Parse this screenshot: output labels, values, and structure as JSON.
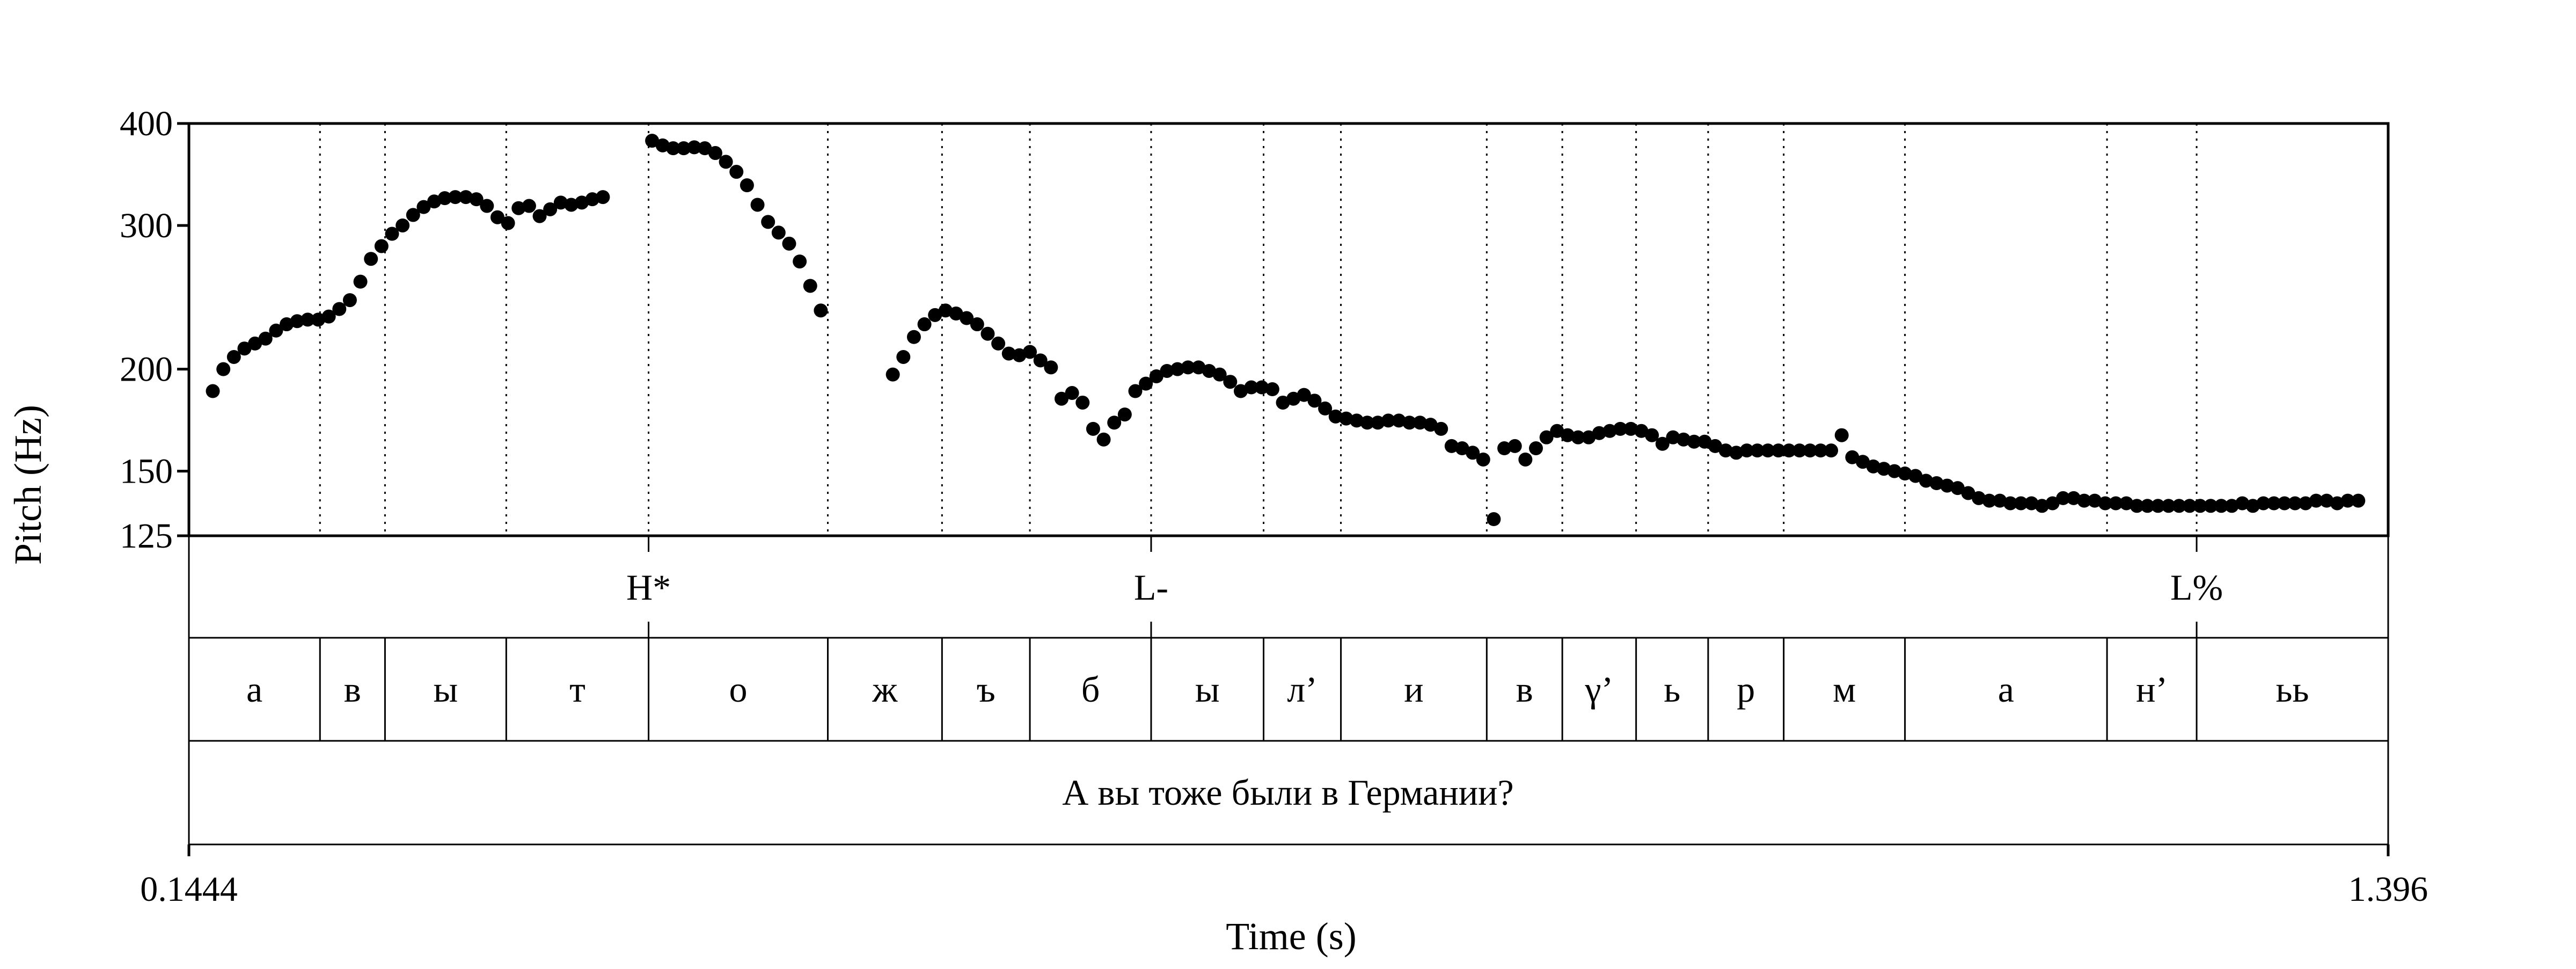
{
  "chart_data": {
    "type": "scatter",
    "title": "",
    "xlabel": "Time (s)",
    "ylabel": "Pitch (Hz)",
    "xlim": [
      0.1444,
      1.396
    ],
    "ylim": [
      125,
      400
    ],
    "y_scale": "log",
    "xtick_labels": [
      "0.1444",
      "1.396"
    ],
    "yticks": [
      {
        "value": 125,
        "label": "125"
      },
      {
        "value": 150,
        "label": "150"
      },
      {
        "value": 200,
        "label": "200"
      },
      {
        "value": 300,
        "label": "300"
      },
      {
        "value": 400,
        "label": "400"
      }
    ],
    "grid": false,
    "segment_boundaries": [
      0.219,
      0.256,
      0.325,
      0.406,
      0.508,
      0.573,
      0.623,
      0.692,
      0.756,
      0.8,
      0.883,
      0.926,
      0.968,
      1.009,
      1.052,
      1.121,
      1.236,
      1.287
    ],
    "tones": [
      {
        "time": 0.406,
        "label": "H*"
      },
      {
        "time": 0.692,
        "label": "L-"
      },
      {
        "time": 1.287,
        "label": "L%"
      }
    ],
    "segments": [
      {
        "start": 0.1444,
        "end": 0.219,
        "label": "а"
      },
      {
        "start": 0.219,
        "end": 0.256,
        "label": "в"
      },
      {
        "start": 0.256,
        "end": 0.325,
        "label": "ы"
      },
      {
        "start": 0.325,
        "end": 0.406,
        "label": "т"
      },
      {
        "start": 0.406,
        "end": 0.508,
        "label": "о"
      },
      {
        "start": 0.508,
        "end": 0.573,
        "label": "ж"
      },
      {
        "start": 0.573,
        "end": 0.623,
        "label": "ъ"
      },
      {
        "start": 0.623,
        "end": 0.692,
        "label": "б"
      },
      {
        "start": 0.692,
        "end": 0.756,
        "label": "ы"
      },
      {
        "start": 0.756,
        "end": 0.8,
        "label": "л’"
      },
      {
        "start": 0.8,
        "end": 0.883,
        "label": "и"
      },
      {
        "start": 0.883,
        "end": 0.926,
        "label": "в"
      },
      {
        "start": 0.926,
        "end": 0.968,
        "label": "γ’"
      },
      {
        "start": 0.968,
        "end": 1.009,
        "label": "ь"
      },
      {
        "start": 1.009,
        "end": 1.052,
        "label": "р"
      },
      {
        "start": 1.052,
        "end": 1.121,
        "label": "м"
      },
      {
        "start": 1.121,
        "end": 1.236,
        "label": "а"
      },
      {
        "start": 1.236,
        "end": 1.287,
        "label": "н’"
      },
      {
        "start": 1.287,
        "end": 1.396,
        "label": "ьь"
      }
    ],
    "sentence": "А вы тоже были в Германии?",
    "series": [
      {
        "points": [
          [
            0.158,
            188
          ],
          [
            0.164,
            200
          ],
          [
            0.17,
            207
          ],
          [
            0.176,
            212
          ],
          [
            0.182,
            215
          ],
          [
            0.188,
            218
          ],
          [
            0.194,
            223
          ],
          [
            0.2,
            227
          ],
          [
            0.206,
            229
          ],
          [
            0.212,
            230
          ],
          [
            0.218,
            230
          ],
          [
            0.224,
            232
          ],
          [
            0.23,
            237
          ],
          [
            0.236,
            243
          ],
          [
            0.242,
            256
          ],
          [
            0.248,
            273
          ],
          [
            0.254,
            283
          ],
          [
            0.26,
            293
          ],
          [
            0.266,
            300
          ],
          [
            0.272,
            309
          ],
          [
            0.278,
            316
          ],
          [
            0.284,
            321
          ],
          [
            0.29,
            324
          ],
          [
            0.296,
            325
          ],
          [
            0.302,
            325
          ],
          [
            0.308,
            323
          ],
          [
            0.314,
            317
          ],
          [
            0.32,
            307
          ],
          [
            0.326,
            302
          ],
          [
            0.332,
            315
          ],
          [
            0.338,
            317
          ],
          [
            0.344,
            308
          ],
          [
            0.35,
            314
          ],
          [
            0.356,
            320
          ],
          [
            0.362,
            318
          ],
          [
            0.368,
            320
          ],
          [
            0.374,
            323
          ],
          [
            0.38,
            325
          ],
          [
            0.408,
            381
          ],
          [
            0.414,
            376
          ],
          [
            0.42,
            373
          ],
          [
            0.426,
            373
          ],
          [
            0.432,
            374
          ],
          [
            0.438,
            373
          ],
          [
            0.444,
            368
          ],
          [
            0.45,
            359
          ],
          [
            0.456,
            349
          ],
          [
            0.462,
            336
          ],
          [
            0.468,
            318
          ],
          [
            0.474,
            303
          ],
          [
            0.48,
            294
          ],
          [
            0.486,
            285
          ],
          [
            0.492,
            271
          ],
          [
            0.498,
            253
          ],
          [
            0.504,
            236
          ],
          [
            0.545,
            197
          ],
          [
            0.551,
            207
          ],
          [
            0.557,
            219
          ],
          [
            0.563,
            227
          ],
          [
            0.569,
            233
          ],
          [
            0.575,
            236
          ],
          [
            0.581,
            234
          ],
          [
            0.587,
            231
          ],
          [
            0.593,
            227
          ],
          [
            0.599,
            221
          ],
          [
            0.605,
            215
          ],
          [
            0.611,
            209
          ],
          [
            0.617,
            208
          ],
          [
            0.623,
            210
          ],
          [
            0.629,
            205
          ],
          [
            0.635,
            201
          ],
          [
            0.641,
            184
          ],
          [
            0.647,
            187
          ],
          [
            0.653,
            182
          ],
          [
            0.659,
            169
          ],
          [
            0.665,
            164
          ],
          [
            0.671,
            172
          ],
          [
            0.677,
            176
          ],
          [
            0.683,
            188
          ],
          [
            0.689,
            192
          ],
          [
            0.695,
            196
          ],
          [
            0.701,
            199
          ],
          [
            0.707,
            200
          ],
          [
            0.713,
            201
          ],
          [
            0.719,
            201
          ],
          [
            0.725,
            199
          ],
          [
            0.731,
            197
          ],
          [
            0.737,
            193
          ],
          [
            0.743,
            188
          ],
          [
            0.749,
            190
          ],
          [
            0.755,
            190
          ],
          [
            0.761,
            189
          ],
          [
            0.767,
            182
          ],
          [
            0.773,
            184
          ],
          [
            0.779,
            186
          ],
          [
            0.785,
            183
          ],
          [
            0.791,
            179
          ],
          [
            0.797,
            175
          ],
          [
            0.803,
            174
          ],
          [
            0.809,
            173
          ],
          [
            0.815,
            172
          ],
          [
            0.821,
            172
          ],
          [
            0.827,
            173
          ],
          [
            0.833,
            173
          ],
          [
            0.839,
            172
          ],
          [
            0.845,
            172
          ],
          [
            0.851,
            171
          ],
          [
            0.857,
            169
          ],
          [
            0.863,
            161
          ],
          [
            0.869,
            160
          ],
          [
            0.875,
            158
          ],
          [
            0.881,
            155
          ],
          [
            0.887,
            131
          ],
          [
            0.893,
            160
          ],
          [
            0.899,
            161
          ],
          [
            0.905,
            155
          ],
          [
            0.911,
            160
          ],
          [
            0.917,
            165
          ],
          [
            0.923,
            168
          ],
          [
            0.929,
            166
          ],
          [
            0.935,
            165
          ],
          [
            0.941,
            165
          ],
          [
            0.947,
            167
          ],
          [
            0.953,
            168
          ],
          [
            0.959,
            169
          ],
          [
            0.965,
            169
          ],
          [
            0.971,
            168
          ],
          [
            0.977,
            166
          ],
          [
            0.983,
            162
          ],
          [
            0.989,
            165
          ],
          [
            0.995,
            164
          ],
          [
            1.001,
            163
          ],
          [
            1.007,
            163
          ],
          [
            1.013,
            161
          ],
          [
            1.019,
            159
          ],
          [
            1.025,
            158
          ],
          [
            1.031,
            159
          ],
          [
            1.037,
            159
          ],
          [
            1.043,
            159
          ],
          [
            1.049,
            159
          ],
          [
            1.055,
            159
          ],
          [
            1.061,
            159
          ],
          [
            1.067,
            159
          ],
          [
            1.073,
            159
          ],
          [
            1.079,
            159
          ],
          [
            1.085,
            166
          ],
          [
            1.091,
            156
          ],
          [
            1.097,
            154
          ],
          [
            1.103,
            152
          ],
          [
            1.109,
            151
          ],
          [
            1.115,
            150
          ],
          [
            1.121,
            149
          ],
          [
            1.127,
            148
          ],
          [
            1.133,
            146
          ],
          [
            1.139,
            145
          ],
          [
            1.145,
            144
          ],
          [
            1.151,
            143
          ],
          [
            1.157,
            141
          ],
          [
            1.163,
            139
          ],
          [
            1.169,
            138
          ],
          [
            1.175,
            138
          ],
          [
            1.181,
            137
          ],
          [
            1.187,
            137
          ],
          [
            1.193,
            137
          ],
          [
            1.199,
            136
          ],
          [
            1.205,
            137
          ],
          [
            1.211,
            139
          ],
          [
            1.217,
            139
          ],
          [
            1.223,
            138
          ],
          [
            1.229,
            138
          ],
          [
            1.235,
            137
          ],
          [
            1.241,
            137
          ],
          [
            1.247,
            137
          ],
          [
            1.253,
            136
          ],
          [
            1.259,
            136
          ],
          [
            1.265,
            136
          ],
          [
            1.271,
            136
          ],
          [
            1.277,
            136
          ],
          [
            1.283,
            136
          ],
          [
            1.289,
            136
          ],
          [
            1.295,
            136
          ],
          [
            1.301,
            136
          ],
          [
            1.307,
            136
          ],
          [
            1.313,
            137
          ],
          [
            1.319,
            136
          ],
          [
            1.325,
            137
          ],
          [
            1.331,
            137
          ],
          [
            1.337,
            137
          ],
          [
            1.343,
            137
          ],
          [
            1.349,
            137
          ],
          [
            1.355,
            138
          ],
          [
            1.361,
            138
          ],
          [
            1.367,
            137
          ],
          [
            1.373,
            138
          ],
          [
            1.379,
            138
          ]
        ]
      }
    ]
  }
}
